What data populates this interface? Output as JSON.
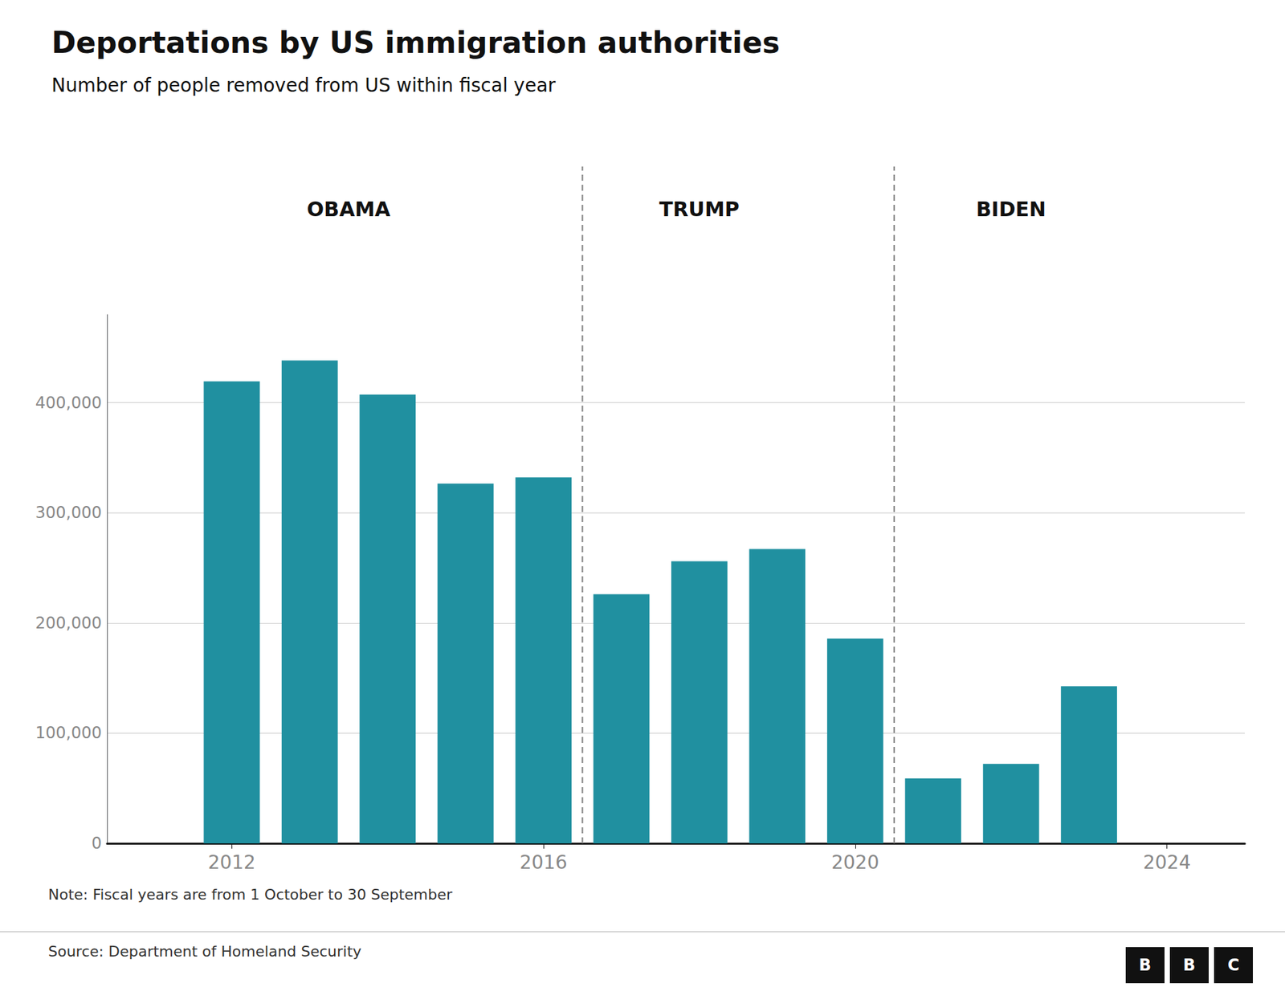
{
  "chart_data": {
    "type": "bar",
    "title": "Deportations by US immigration authorities",
    "subtitle": "Number of people removed from US within fiscal year",
    "x": [
      2012,
      2013,
      2014,
      2015,
      2016,
      2017,
      2018,
      2019,
      2020,
      2021,
      2022,
      2023
    ],
    "values": [
      419384,
      438421,
      407375,
      326573,
      332227,
      226119,
      256085,
      267258,
      185884,
      59011,
      72177,
      142580
    ],
    "color": "#2090a0",
    "xlim": [
      2010.4,
      2025.0
    ],
    "xticks": [
      2012,
      2016,
      2020,
      2024
    ],
    "ylim": [
      0,
      480000
    ],
    "yticks": [
      0,
      {
        "value": 100000,
        "label": "100,000"
      },
      {
        "value": 200000,
        "label": "200,000"
      },
      {
        "value": 300000,
        "label": "300,000"
      },
      {
        "value": 400000,
        "label": "400,000"
      }
    ],
    "grid": true,
    "dividers": [
      2016.5,
      2020.5
    ],
    "annotations": [
      {
        "text": "OBAMA",
        "x": 2013.5
      },
      {
        "text": "TRUMP",
        "x": 2018.0
      },
      {
        "text": "BIDEN",
        "x": 2022.0
      }
    ],
    "note": "Note: Fiscal years are from 1 October to 30 September",
    "source": "Source: Department of Homeland Security",
    "logo": [
      "B",
      "B",
      "C"
    ]
  }
}
